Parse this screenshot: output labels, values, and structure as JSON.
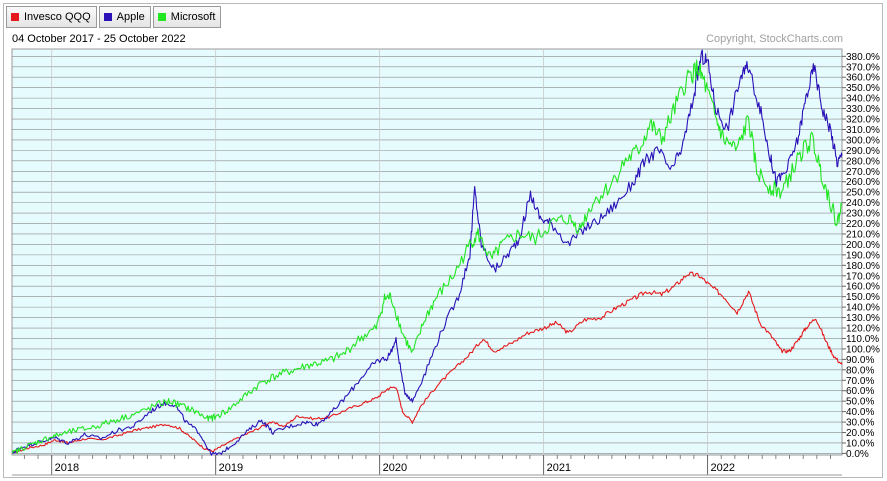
{
  "legend": [
    {
      "label": "Invesco QQQ",
      "color": "#e41a1c"
    },
    {
      "label": "Apple",
      "color": "#2a12b8"
    },
    {
      "label": "Microsoft",
      "color": "#22e622"
    }
  ],
  "period_text": "04 October 2017 - 25 October 2022",
  "copyright_text": "Copyright, StockCharts.com",
  "chart_data": {
    "type": "line",
    "title": "",
    "ylim": [
      -1.5,
      387
    ],
    "xlim": [
      2017.758,
      2022.82
    ],
    "y_ticks": [
      0,
      10,
      20,
      30,
      40,
      50,
      60,
      70,
      80,
      90,
      100,
      110,
      120,
      130,
      140,
      150,
      160,
      170,
      180,
      190,
      200,
      210,
      220,
      230,
      240,
      250,
      260,
      270,
      280,
      290,
      300,
      310,
      320,
      330,
      340,
      350,
      360,
      370,
      380
    ],
    "y_tick_format": "{v}.0%",
    "x_year_labels": [
      "2018",
      "2019",
      "2020",
      "2021",
      "2022"
    ],
    "x_year_positions": [
      2018.0,
      2019.0,
      2020.0,
      2021.0,
      2022.0
    ],
    "grid": true,
    "legend_position": "top-left",
    "series": [
      {
        "name": "Invesco QQQ",
        "color": "#e41a1c",
        "points": [
          [
            2017.76,
            0
          ],
          [
            2017.85,
            5
          ],
          [
            2017.95,
            8
          ],
          [
            2018.02,
            13
          ],
          [
            2018.1,
            10
          ],
          [
            2018.2,
            14
          ],
          [
            2018.3,
            13
          ],
          [
            2018.4,
            17
          ],
          [
            2018.5,
            22
          ],
          [
            2018.6,
            25
          ],
          [
            2018.7,
            28
          ],
          [
            2018.78,
            24
          ],
          [
            2018.85,
            15
          ],
          [
            2018.93,
            5
          ],
          [
            2018.98,
            2
          ],
          [
            2019.05,
            8
          ],
          [
            2019.15,
            16
          ],
          [
            2019.25,
            23
          ],
          [
            2019.33,
            30
          ],
          [
            2019.42,
            26
          ],
          [
            2019.5,
            36
          ],
          [
            2019.6,
            33
          ],
          [
            2019.7,
            35
          ],
          [
            2019.8,
            42
          ],
          [
            2019.9,
            48
          ],
          [
            2019.98,
            53
          ],
          [
            2020.05,
            62
          ],
          [
            2020.1,
            64
          ],
          [
            2020.14,
            40
          ],
          [
            2020.2,
            30
          ],
          [
            2020.25,
            45
          ],
          [
            2020.35,
            65
          ],
          [
            2020.45,
            80
          ],
          [
            2020.55,
            95
          ],
          [
            2020.63,
            110
          ],
          [
            2020.7,
            98
          ],
          [
            2020.8,
            105
          ],
          [
            2020.9,
            115
          ],
          [
            2021.0,
            120
          ],
          [
            2021.08,
            125
          ],
          [
            2021.15,
            115
          ],
          [
            2021.25,
            128
          ],
          [
            2021.35,
            130
          ],
          [
            2021.45,
            140
          ],
          [
            2021.55,
            148
          ],
          [
            2021.63,
            155
          ],
          [
            2021.72,
            152
          ],
          [
            2021.8,
            160
          ],
          [
            2021.88,
            172
          ],
          [
            2021.95,
            170
          ],
          [
            2022.02,
            160
          ],
          [
            2022.1,
            150
          ],
          [
            2022.18,
            135
          ],
          [
            2022.25,
            155
          ],
          [
            2022.32,
            125
          ],
          [
            2022.4,
            110
          ],
          [
            2022.45,
            98
          ],
          [
            2022.5,
            98
          ],
          [
            2022.55,
            108
          ],
          [
            2022.6,
            120
          ],
          [
            2022.66,
            130
          ],
          [
            2022.72,
            108
          ],
          [
            2022.77,
            93
          ],
          [
            2022.82,
            85
          ]
        ]
      },
      {
        "name": "Apple",
        "color": "#2a12b8",
        "points": [
          [
            2017.76,
            0
          ],
          [
            2017.8,
            5
          ],
          [
            2017.88,
            9
          ],
          [
            2017.95,
            12
          ],
          [
            2018.02,
            15
          ],
          [
            2018.1,
            10
          ],
          [
            2018.2,
            18
          ],
          [
            2018.3,
            14
          ],
          [
            2018.4,
            22
          ],
          [
            2018.5,
            26
          ],
          [
            2018.6,
            40
          ],
          [
            2018.68,
            48
          ],
          [
            2018.75,
            47
          ],
          [
            2018.82,
            30
          ],
          [
            2018.9,
            20
          ],
          [
            2018.97,
            0
          ],
          [
            2019.02,
            -1
          ],
          [
            2019.1,
            8
          ],
          [
            2019.2,
            22
          ],
          [
            2019.28,
            32
          ],
          [
            2019.35,
            20
          ],
          [
            2019.45,
            26
          ],
          [
            2019.55,
            30
          ],
          [
            2019.62,
            28
          ],
          [
            2019.7,
            38
          ],
          [
            2019.8,
            55
          ],
          [
            2019.9,
            75
          ],
          [
            2019.98,
            88
          ],
          [
            2020.05,
            92
          ],
          [
            2020.1,
            108
          ],
          [
            2020.15,
            60
          ],
          [
            2020.2,
            50
          ],
          [
            2020.28,
            78
          ],
          [
            2020.38,
            118
          ],
          [
            2020.48,
            150
          ],
          [
            2020.55,
            190
          ],
          [
            2020.58,
            253
          ],
          [
            2020.62,
            200
          ],
          [
            2020.7,
            175
          ],
          [
            2020.78,
            190
          ],
          [
            2020.85,
            205
          ],
          [
            2020.92,
            248
          ],
          [
            2020.98,
            225
          ],
          [
            2021.05,
            220
          ],
          [
            2021.15,
            200
          ],
          [
            2021.25,
            215
          ],
          [
            2021.35,
            225
          ],
          [
            2021.45,
            240
          ],
          [
            2021.55,
            260
          ],
          [
            2021.62,
            280
          ],
          [
            2021.7,
            290
          ],
          [
            2021.78,
            270
          ],
          [
            2021.85,
            295
          ],
          [
            2021.92,
            345
          ],
          [
            2021.96,
            380
          ],
          [
            2022.0,
            375
          ],
          [
            2022.05,
            330
          ],
          [
            2022.12,
            310
          ],
          [
            2022.2,
            360
          ],
          [
            2022.25,
            370
          ],
          [
            2022.32,
            330
          ],
          [
            2022.38,
            285
          ],
          [
            2022.42,
            260
          ],
          [
            2022.48,
            270
          ],
          [
            2022.55,
            300
          ],
          [
            2022.6,
            340
          ],
          [
            2022.65,
            370
          ],
          [
            2022.7,
            330
          ],
          [
            2022.75,
            310
          ],
          [
            2022.79,
            278
          ],
          [
            2022.82,
            285
          ]
        ]
      },
      {
        "name": "Microsoft",
        "color": "#22e622",
        "points": [
          [
            2017.76,
            0
          ],
          [
            2017.82,
            5
          ],
          [
            2017.9,
            10
          ],
          [
            2017.98,
            15
          ],
          [
            2018.05,
            18
          ],
          [
            2018.15,
            22
          ],
          [
            2018.25,
            25
          ],
          [
            2018.35,
            30
          ],
          [
            2018.45,
            35
          ],
          [
            2018.55,
            40
          ],
          [
            2018.65,
            47
          ],
          [
            2018.72,
            50
          ],
          [
            2018.8,
            45
          ],
          [
            2018.88,
            40
          ],
          [
            2018.95,
            33
          ],
          [
            2019.0,
            35
          ],
          [
            2019.08,
            42
          ],
          [
            2019.18,
            55
          ],
          [
            2019.28,
            68
          ],
          [
            2019.38,
            75
          ],
          [
            2019.48,
            80
          ],
          [
            2019.58,
            85
          ],
          [
            2019.68,
            88
          ],
          [
            2019.78,
            95
          ],
          [
            2019.88,
            110
          ],
          [
            2019.98,
            120
          ],
          [
            2020.03,
            148
          ],
          [
            2020.07,
            150
          ],
          [
            2020.14,
            115
          ],
          [
            2020.2,
            95
          ],
          [
            2020.28,
            130
          ],
          [
            2020.35,
            150
          ],
          [
            2020.45,
            170
          ],
          [
            2020.55,
            200
          ],
          [
            2020.6,
            210
          ],
          [
            2020.68,
            185
          ],
          [
            2020.75,
            200
          ],
          [
            2020.85,
            210
          ],
          [
            2020.95,
            205
          ],
          [
            2021.05,
            220
          ],
          [
            2021.15,
            225
          ],
          [
            2021.22,
            215
          ],
          [
            2021.3,
            240
          ],
          [
            2021.4,
            255
          ],
          [
            2021.5,
            280
          ],
          [
            2021.58,
            290
          ],
          [
            2021.65,
            315
          ],
          [
            2021.72,
            300
          ],
          [
            2021.8,
            330
          ],
          [
            2021.88,
            360
          ],
          [
            2021.94,
            368
          ],
          [
            2021.98,
            355
          ],
          [
            2022.05,
            320
          ],
          [
            2022.1,
            300
          ],
          [
            2022.18,
            290
          ],
          [
            2022.25,
            320
          ],
          [
            2022.3,
            270
          ],
          [
            2022.38,
            255
          ],
          [
            2022.45,
            250
          ],
          [
            2022.5,
            265
          ],
          [
            2022.58,
            290
          ],
          [
            2022.64,
            300
          ],
          [
            2022.7,
            265
          ],
          [
            2022.75,
            240
          ],
          [
            2022.79,
            220
          ],
          [
            2022.82,
            238
          ]
        ]
      }
    ]
  }
}
